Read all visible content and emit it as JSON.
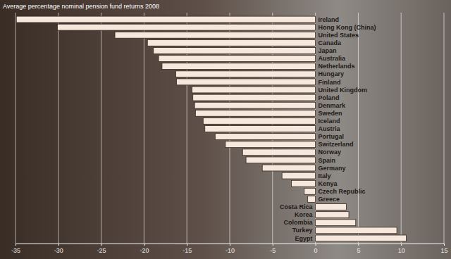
{
  "chart_data": {
    "type": "bar",
    "orientation": "horizontal",
    "title": "Average percentage nominal pension fund returns 2008",
    "categories": [
      "Ireland",
      "Hong Kong (China)",
      "United States",
      "Canada",
      "Japan",
      "Australia",
      "Netherlands",
      "Hungary",
      "Finland",
      "United Kingdom",
      "Poland",
      "Denmark",
      "Sweden",
      "Iceland",
      "Austria",
      "Portugal",
      "Switzerland",
      "Norway",
      "Spain",
      "Germany",
      "Italy",
      "Kenya",
      "Czech Republic",
      "Greece",
      "Costa Rica",
      "Korea",
      "Colombia",
      "Turkey",
      "Egypt"
    ],
    "values": [
      -34.9,
      -30.1,
      -23.4,
      -19.6,
      -18.9,
      -18.3,
      -17.9,
      -16.3,
      -16.2,
      -14.4,
      -14.3,
      -14.1,
      -14.0,
      -13.1,
      -12.9,
      -11.7,
      -10.5,
      -8.5,
      -8.1,
      -6.2,
      -3.9,
      -2.8,
      -1.3,
      -0.9,
      3.6,
      3.9,
      4.7,
      9.5,
      10.6
    ],
    "color": "#f6e8dc",
    "xlim": [
      -35,
      15
    ],
    "xticks": [
      -35,
      -30,
      -25,
      -20,
      -15,
      -10,
      -5,
      0,
      5,
      10,
      15
    ],
    "grid": true
  }
}
